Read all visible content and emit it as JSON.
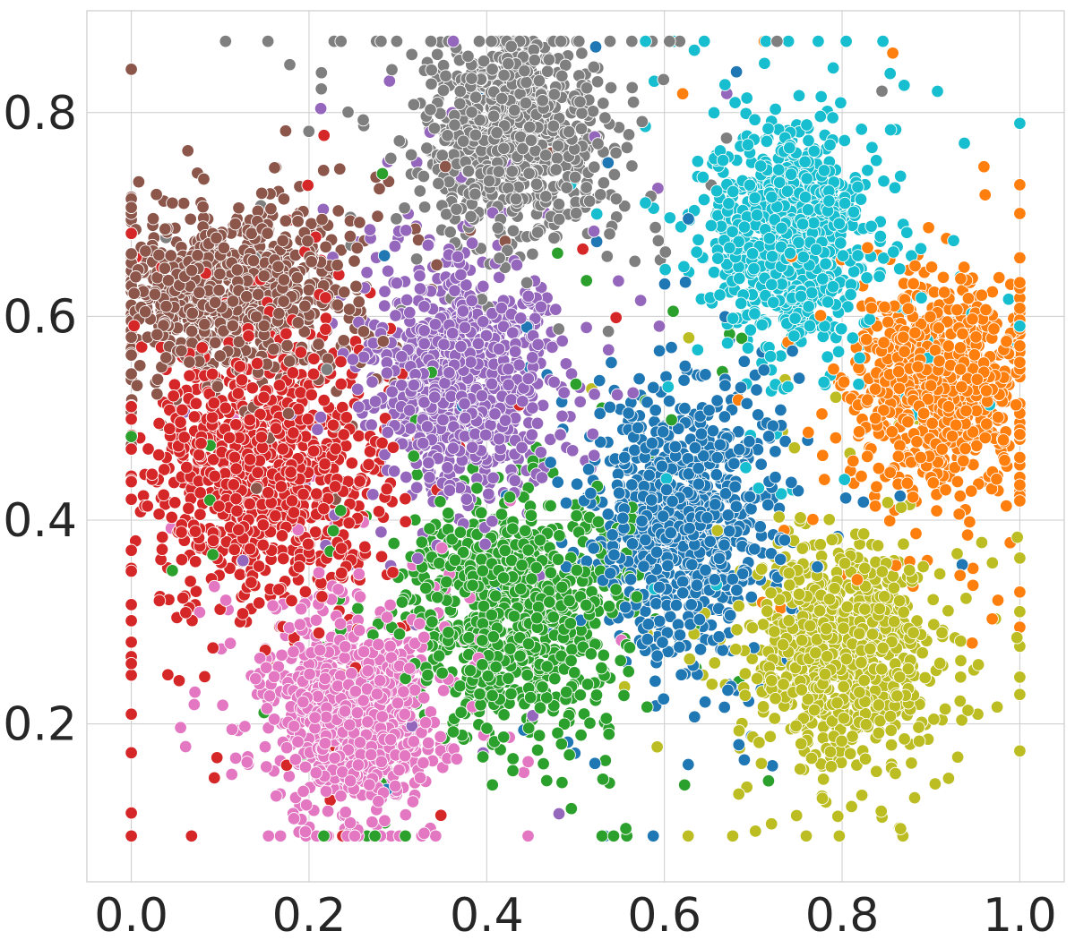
{
  "chart_data": {
    "type": "scatter",
    "title": "",
    "xlabel": "",
    "ylabel": "",
    "xlim": [
      -0.05,
      1.05
    ],
    "ylim": [
      0.045,
      0.9
    ],
    "xticks": [
      "0.0",
      "0.2",
      "0.4",
      "0.6",
      "0.8",
      "1.0"
    ],
    "yticks": [
      "0.2",
      "0.4",
      "0.6",
      "0.8"
    ],
    "grid": true,
    "legend": "none",
    "marker": "circle",
    "series": [
      {
        "color": "#1f77b4",
        "center": [
          0.62,
          0.4
        ],
        "spread": [
          0.05,
          0.06
        ],
        "count": 900
      },
      {
        "color": "#ff7f0e",
        "center": [
          0.91,
          0.53
        ],
        "spread": [
          0.045,
          0.05
        ],
        "count": 900
      },
      {
        "color": "#2ca02c",
        "center": [
          0.43,
          0.31
        ],
        "spread": [
          0.06,
          0.06
        ],
        "count": 900
      },
      {
        "color": "#d62728",
        "center": [
          0.15,
          0.45
        ],
        "spread": [
          0.07,
          0.07
        ],
        "count": 900
      },
      {
        "color": "#9467bd",
        "center": [
          0.37,
          0.54
        ],
        "spread": [
          0.05,
          0.06
        ],
        "count": 900
      },
      {
        "color": "#8c564b",
        "center": [
          0.12,
          0.62
        ],
        "spread": [
          0.06,
          0.04
        ],
        "count": 900
      },
      {
        "color": "#e377c2",
        "center": [
          0.25,
          0.21
        ],
        "spread": [
          0.045,
          0.055
        ],
        "count": 900
      },
      {
        "color": "#7f7f7f",
        "center": [
          0.43,
          0.78
        ],
        "spread": [
          0.05,
          0.045
        ],
        "count": 900
      },
      {
        "color": "#bcbd22",
        "center": [
          0.8,
          0.27
        ],
        "spread": [
          0.05,
          0.05
        ],
        "count": 900
      },
      {
        "color": "#17becf",
        "center": [
          0.74,
          0.68
        ],
        "spread": [
          0.045,
          0.055
        ],
        "count": 900
      }
    ]
  }
}
